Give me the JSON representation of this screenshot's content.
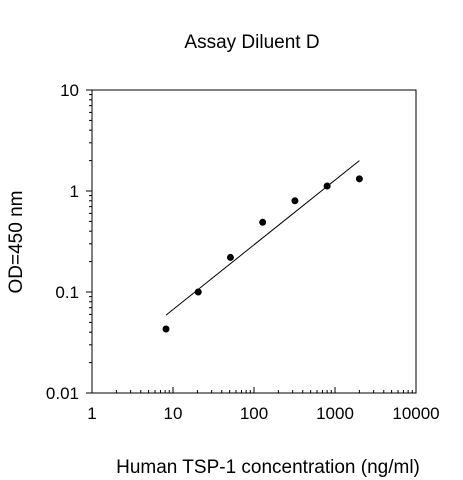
{
  "chart_data": {
    "type": "scatter",
    "title": "Assay Diluent D",
    "xlabel": "Human TSP-1 concentration (ng/ml)",
    "ylabel": "OD=450 nm",
    "x_scale": "log",
    "y_scale": "log",
    "xlim": [
      1,
      10000
    ],
    "ylim": [
      0.01,
      10
    ],
    "x_ticks": [
      1,
      10,
      100,
      1000,
      10000
    ],
    "x_tick_labels": [
      "1",
      "10",
      "100",
      "1000",
      "10000"
    ],
    "y_ticks": [
      0.01,
      0.1,
      1,
      10
    ],
    "y_tick_labels": [
      "0.01",
      "0.1",
      "1",
      "10"
    ],
    "grid": false,
    "series": [
      {
        "points": [
          {
            "x": 8.2,
            "y": 0.043
          },
          {
            "x": 20.5,
            "y": 0.1
          },
          {
            "x": 51.2,
            "y": 0.22
          },
          {
            "x": 128,
            "y": 0.49
          },
          {
            "x": 320,
            "y": 0.8
          },
          {
            "x": 800,
            "y": 1.12
          },
          {
            "x": 2000,
            "y": 1.32
          }
        ]
      }
    ],
    "fit_line": {
      "x": [
        8.2,
        2000
      ],
      "y": [
        0.059,
        2.0
      ]
    },
    "marker_color": "#000000",
    "line_color": "#000000"
  }
}
